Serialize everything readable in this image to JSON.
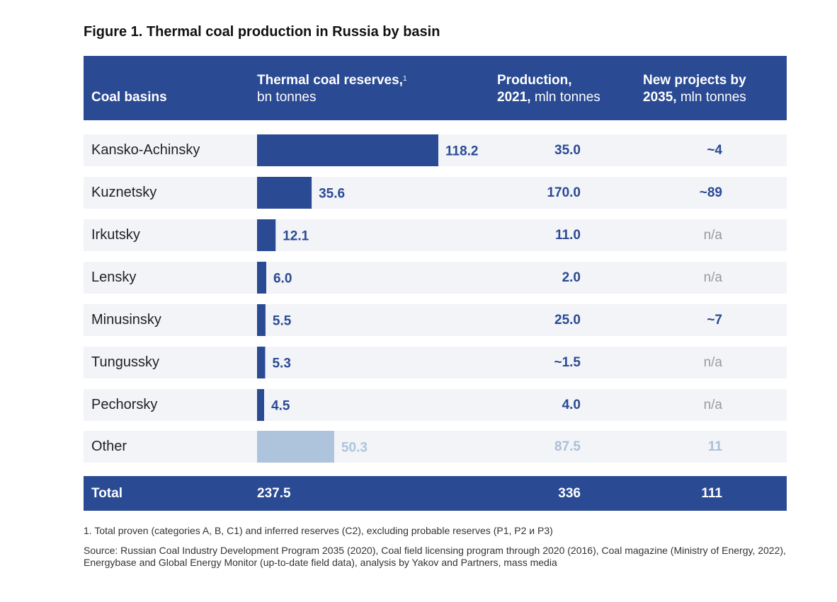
{
  "title": "Figure 1. Thermal coal production in Russia by basin",
  "header": {
    "col1": "Coal basins",
    "col2_bold": "Thermal coal reserves,",
    "col2_sup": "1",
    "col2_normal": "bn tonnes",
    "col3_line1": "Production,",
    "col3_bold": "2021,",
    "col3_normal": "mln tonnes",
    "col4_line1": "New projects by",
    "col4_bold": "2035,",
    "col4_normal": "mln tonnes"
  },
  "chart_data": {
    "type": "bar",
    "orientation": "horizontal",
    "title": "Figure 1. Thermal coal production in Russia by basin",
    "xlabel": "Thermal coal reserves, bn tonnes",
    "ylabel": "Coal basins",
    "categories": [
      "Kansko-Achinsky",
      "Kuznetsky",
      "Irkutsky",
      "Lensky",
      "Minusinsky",
      "Tungussky",
      "Pechorsky",
      "Other"
    ],
    "values": [
      118.2,
      35.6,
      12.1,
      6.0,
      5.5,
      5.3,
      4.5,
      50.3
    ],
    "value_labels": [
      "118.2",
      "35.6",
      "12.1",
      "6.0",
      "5.5",
      "5.3",
      "4.5",
      "50.3"
    ],
    "xlim": [
      0,
      118.2
    ],
    "colors": {
      "primary": "#2a4a93",
      "other": "#aec4dc"
    }
  },
  "rows": [
    {
      "name": "Kansko-Achinsky",
      "production": "35.0",
      "new_projects": "~4"
    },
    {
      "name": "Kuznetsky",
      "production": "170.0",
      "new_projects": "~89"
    },
    {
      "name": "Irkutsky",
      "production": "11.0",
      "new_projects": "n/a"
    },
    {
      "name": "Lensky",
      "production": "2.0",
      "new_projects": "n/a"
    },
    {
      "name": "Minusinsky",
      "production": "25.0",
      "new_projects": "~7"
    },
    {
      "name": "Tungussky",
      "production": "~1.5",
      "new_projects": "n/a"
    },
    {
      "name": "Pechorsky",
      "production": "4.0",
      "new_projects": "n/a"
    },
    {
      "name": "Other",
      "production": "87.5",
      "new_projects": "11"
    }
  ],
  "total": {
    "label": "Total",
    "reserves": "237.5",
    "production": "336",
    "new_projects": "111"
  },
  "footnote": "1. Total proven (categories A, B, C1) and inferred reserves (C2), excluding probable reserves (P1, P2 и P3)",
  "source": "Source: Russian Coal Industry Development Program 2035 (2020), Coal field licensing program through 2020 (2016), Coal magazine (Ministry of Energy, 2022), Energybase and Global Energy Monitor (up-to-date field data), analysis by  Yakov and Partners, mass media"
}
